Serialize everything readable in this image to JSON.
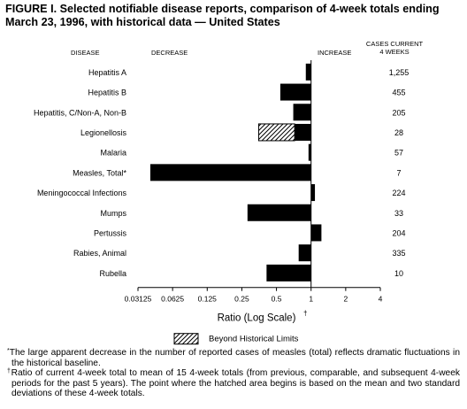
{
  "title": "FIGURE I. Selected notifiable disease reports, comparison of 4-week totals ending March 23, 1996, with historical data — United States",
  "footnotes": [
    {
      "mark": "*",
      "text": "The large apparent decrease in the number of reported cases of measles (total) reflects dramatic fluctuations in the historical baseline."
    },
    {
      "mark": "†",
      "text": "Ratio of current 4-week total to mean of 15 4-week totals (from previous, comparable, and subsequent 4-week periods for the past 5 years). The point where the hatched area begins is based on the mean and two standard deviations of these 4-week totals."
    }
  ],
  "chart_data": {
    "type": "bar",
    "orientation": "horizontal",
    "x_scale": "log2",
    "xlim": [
      0.03125,
      4
    ],
    "xticks": [
      0.03125,
      0.0625,
      0.125,
      0.25,
      0.5,
      1,
      2,
      4
    ],
    "xtick_labels": [
      "0.03125",
      "0.0625",
      "0.125",
      "0.25",
      "0.5",
      "1",
      "2",
      "4"
    ],
    "baseline": 1,
    "xlabel": "Ratio (Log Scale)",
    "xlabel_mark": "†",
    "header_disease": "DISEASE",
    "header_decrease": "DECREASE",
    "header_increase": "INCREASE",
    "header_cases": "CASES CURRENT\n4 WEEKS",
    "legend": {
      "label": "Beyond Historical Limits",
      "pattern": "diagonal-hatch"
    },
    "bar_color": "#000000",
    "categories": [
      "Hepatitis A",
      "Hepatitis B",
      "Hepatitis, C/Non-A, Non-B",
      "Legionellosis",
      "Malaria",
      "Measles, Total*",
      "Meningococcal Infections",
      "Mumps",
      "Pertussis",
      "Rabies, Animal",
      "Rubella"
    ],
    "values": [
      0.9,
      0.54,
      0.7,
      0.35,
      0.95,
      0.04,
      1.08,
      0.28,
      1.23,
      0.78,
      0.41
    ],
    "beyond_limits_start": [
      null,
      null,
      null,
      0.72,
      null,
      null,
      null,
      null,
      null,
      null,
      null
    ],
    "cases_current": [
      "1,255",
      "455",
      "205",
      "28",
      "57",
      "7",
      "224",
      "33",
      "204",
      "335",
      "10"
    ]
  }
}
